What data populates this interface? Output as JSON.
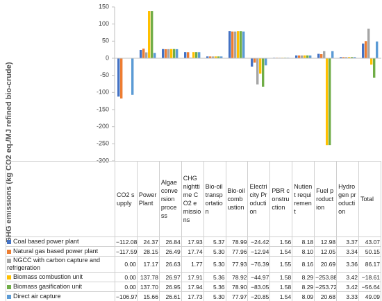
{
  "chart_data": {
    "type": "bar",
    "y_label": "GHG emissions (kg CO2 eq./MJ refined bio-crude)",
    "categories": [
      "CO2 supply",
      "Power Plant",
      "Algae conversion process",
      "CHG nighttime CO2 emissions",
      "Bio-oil transportation",
      "Bio-oil combustion",
      "Electricity Production",
      "PBR construction",
      "Nutient requirement",
      "Fuel production",
      "Hydrogen production",
      "Total"
    ],
    "ylim": [
      -300,
      150
    ],
    "yticks": [
      150,
      100,
      50,
      0,
      -50,
      -100,
      -150,
      -200,
      -250,
      -300
    ],
    "series": [
      {
        "name": "Coal based power plant",
        "color": "#4472c4",
        "values": [
          -112.08,
          24.37,
          26.84,
          17.93,
          5.37,
          78.99,
          -24.42,
          1.56,
          8.18,
          12.98,
          3.37,
          43.07
        ],
        "value_labels": [
          "−112.08",
          "24.37",
          "26.84",
          "17.93",
          "5.37",
          "78.99",
          "−24.42",
          "1.56",
          "8.18",
          "12.98",
          "3.37",
          "43.07"
        ]
      },
      {
        "name": "Natural gas based power plant",
        "color": "#ed7d31",
        "values": [
          -117.59,
          28.15,
          26.49,
          17.74,
          5.3,
          77.96,
          -12.94,
          1.54,
          8.1,
          12.05,
          3.34,
          50.15
        ],
        "value_labels": [
          "−117.59",
          "28.15",
          "26.49",
          "17.74",
          "5.30",
          "77.96",
          "−12.94",
          "1.54",
          "8.10",
          "12.05",
          "3.34",
          "50.15"
        ]
      },
      {
        "name": "NGCC with carbon capture and refrigeration",
        "color": "#a5a5a5",
        "values": [
          0.0,
          17.17,
          26.63,
          1.77,
          5.3,
          77.93,
          -76.39,
          1.55,
          8.16,
          20.69,
          3.36,
          86.17
        ],
        "value_labels": [
          "0.00",
          "17.17",
          "26.63",
          "1.77",
          "5.30",
          "77.93",
          "−76.39",
          "1.55",
          "8.16",
          "20.69",
          "3.36",
          "86.17"
        ]
      },
      {
        "name": "Biomass combustion unit",
        "color": "#ffc000",
        "values": [
          0.0,
          137.78,
          26.97,
          17.91,
          5.36,
          78.92,
          -44.97,
          1.58,
          8.29,
          -253.88,
          3.42,
          -18.61
        ],
        "value_labels": [
          "0.00",
          "137.78",
          "26.97",
          "17.91",
          "5.36",
          "78.92",
          "−44.97",
          "1.58",
          "8.29",
          "−253.88",
          "3.42",
          "−18.61"
        ]
      },
      {
        "name": "Biomass gasification unit",
        "color": "#70ad47",
        "values": [
          0.0,
          137.7,
          26.95,
          17.94,
          5.36,
          78.9,
          -83.05,
          1.58,
          8.29,
          -253.72,
          3.42,
          -56.64
        ],
        "value_labels": [
          "0.00",
          "137.70",
          "26.95",
          "17.94",
          "5.36",
          "78.90",
          "−83.05",
          "1.58",
          "8.29",
          "−253.72",
          "3.42",
          "−56.64"
        ]
      },
      {
        "name": "Direct air capture",
        "color": "#5b9bd5",
        "values": [
          -106.97,
          15.66,
          26.61,
          17.73,
          5.3,
          77.97,
          -20.85,
          1.54,
          8.09,
          20.68,
          3.33,
          49.09
        ],
        "value_labels": [
          "−106.97",
          "15.66",
          "26.61",
          "17.73",
          "5.30",
          "77.97",
          "−20.85",
          "1.54",
          "8.09",
          "20.68",
          "3.33",
          "49.09"
        ]
      }
    ]
  }
}
